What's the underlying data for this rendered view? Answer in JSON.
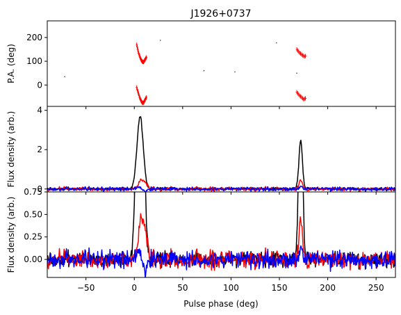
{
  "chart_data": {
    "type": "line",
    "title": "J1926+0737",
    "xlabel": "Pulse phase (deg)",
    "xlim": [
      -90,
      270
    ],
    "xticks": [
      -50,
      0,
      50,
      100,
      150,
      200,
      250
    ],
    "xtick_labels": [
      "−50",
      "0",
      "50",
      "100",
      "150",
      "200",
      "250"
    ],
    "panels": [
      {
        "id": "pa",
        "ylabel": "P.A. (deg)",
        "ylim": [
          -90,
          270
        ],
        "yticks": [
          0,
          100,
          200
        ],
        "ytick_labels": [
          "0",
          "100",
          "200"
        ],
        "series": [
          {
            "color": "#ff0000",
            "style": "errorbar",
            "points": [
              [
                2.5,
                170
              ],
              [
                3,
                160
              ],
              [
                3.5,
                150
              ],
              [
                4,
                142
              ],
              [
                4.5,
                134
              ],
              [
                5,
                128
              ],
              [
                5.5,
                122
              ],
              [
                6,
                116
              ],
              [
                6.5,
                111
              ],
              [
                7,
                106
              ],
              [
                7.5,
                103
              ],
              [
                8,
                100
              ],
              [
                8.5,
                98
              ],
              [
                9,
                96
              ],
              [
                9.5,
                97
              ],
              [
                10,
                99
              ],
              [
                10.5,
                103
              ],
              [
                11,
                106
              ],
              [
                11.5,
                110
              ],
              [
                12,
                113
              ],
              [
                12.5,
                116
              ],
              [
                2.5,
                -10
              ],
              [
                3,
                -18
              ],
              [
                3.5,
                -25
              ],
              [
                4,
                -32
              ],
              [
                4.5,
                -38
              ],
              [
                5,
                -45
              ],
              [
                5.5,
                -52
              ],
              [
                6,
                -57
              ],
              [
                6.5,
                -62
              ],
              [
                7,
                -66
              ],
              [
                7.5,
                -70
              ],
              [
                8,
                -73
              ],
              [
                8.5,
                -75
              ],
              [
                9,
                -76
              ],
              [
                9.5,
                -74
              ],
              [
                10,
                -72
              ],
              [
                10.5,
                -67
              ],
              [
                11,
                -63
              ],
              [
                11.5,
                -60
              ],
              [
                12,
                -55
              ],
              [
                12.5,
                -52
              ],
              [
                168,
                150
              ],
              [
                169,
                145
              ],
              [
                170,
                140
              ],
              [
                171,
                135
              ],
              [
                172,
                132
              ],
              [
                173,
                128
              ],
              [
                174,
                125
              ],
              [
                175,
                123
              ],
              [
                176,
                120
              ],
              [
                177,
                122
              ],
              [
                168,
                -30
              ],
              [
                169,
                -35
              ],
              [
                170,
                -40
              ],
              [
                171,
                -45
              ],
              [
                172,
                -48
              ],
              [
                173,
                -52
              ],
              [
                174,
                -56
              ],
              [
                175,
                -60
              ],
              [
                176,
                -58
              ],
              [
                177,
                -56
              ]
            ]
          },
          {
            "color": "#000000",
            "style": "scatter",
            "points": [
              [
                -72,
                35
              ],
              [
                27,
                188
              ],
              [
                72,
                60
              ],
              [
                104,
                55
              ],
              [
                147,
                177
              ],
              [
                168,
                50
              ]
            ]
          }
        ]
      },
      {
        "id": "flux",
        "ylabel": "Flux density (arb.)",
        "ylim": [
          -0.15,
          4.2
        ],
        "yticks": [
          0,
          2,
          4
        ],
        "ytick_labels": [
          "0",
          "2",
          "4"
        ],
        "series": [
          {
            "color": "#000000",
            "components": [
              {
                "center": 6,
                "amp": 3.7,
                "width": 3.2
              },
              {
                "center": 172,
                "amp": 2.4,
                "width": 1.8
              }
            ],
            "noise": 0.05
          },
          {
            "color": "#ff0000",
            "components": [
              {
                "center": 8,
                "amp": 0.45,
                "width": 3.5
              },
              {
                "center": 172,
                "amp": 0.45,
                "width": 1.8
              }
            ],
            "noise": 0.06
          },
          {
            "color": "#0000ff",
            "components": [
              {
                "center": 5,
                "amp": 0.15,
                "width": 2.5
              },
              {
                "center": 10,
                "amp": -0.15,
                "width": 2.5
              },
              {
                "center": 172,
                "amp": 0.12,
                "width": 1.5
              }
            ],
            "noise": 0.06
          }
        ]
      },
      {
        "id": "zoom",
        "ylabel": "Flux density (arb.)",
        "ylim": [
          -0.2,
          0.75
        ],
        "yticks": [
          0,
          0.25,
          0.5,
          0.75
        ],
        "ytick_labels": [
          "0.00",
          "0.25",
          "0.50",
          "0.75"
        ],
        "series": [
          {
            "color": "#000000",
            "components": [
              {
                "center": 6,
                "amp": 3.7,
                "width": 3.2
              },
              {
                "center": 172,
                "amp": 2.4,
                "width": 1.8
              }
            ],
            "noise": 0.05
          },
          {
            "color": "#ff0000",
            "components": [
              {
                "center": 8,
                "amp": 0.45,
                "width": 3.5
              },
              {
                "center": 172,
                "amp": 0.45,
                "width": 1.8
              }
            ],
            "noise": 0.06
          },
          {
            "color": "#0000ff",
            "components": [
              {
                "center": 5,
                "amp": 0.15,
                "width": 2.5
              },
              {
                "center": 10,
                "amp": -0.15,
                "width": 2.5
              },
              {
                "center": 172,
                "amp": 0.12,
                "width": 1.5
              }
            ],
            "noise": 0.06
          }
        ]
      }
    ]
  }
}
